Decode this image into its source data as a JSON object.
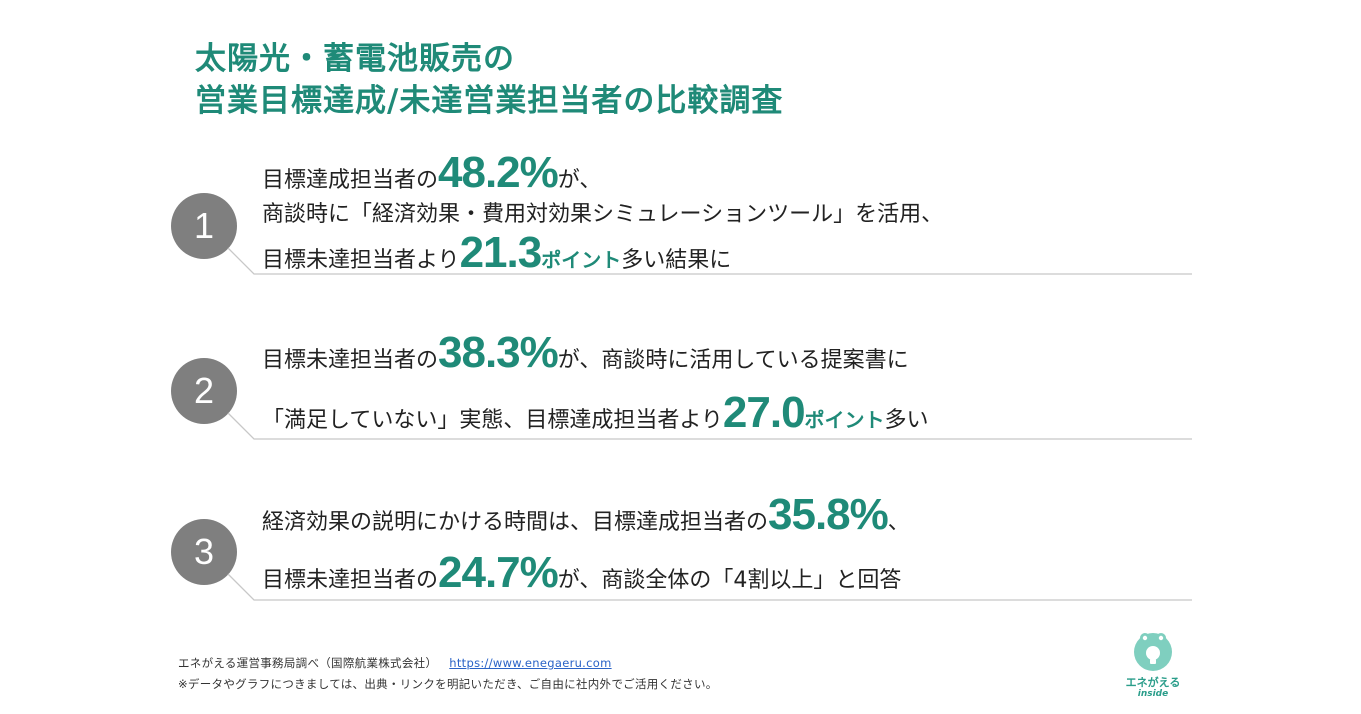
{
  "title": {
    "line1": "太陽光・蓄電池販売の",
    "line2": "営業目標達成/未達営業担当者の比較調査"
  },
  "items": [
    {
      "number": "1",
      "l1_pre": "目標達成担当者の",
      "l1_big": "48.2%",
      "l1_post": "が、",
      "l2": "商談時に「経済効果・費用対効果シミュレーションツール」を活用、",
      "l3_pre": "目標未達担当者より",
      "l3_big": "21.3",
      "l3_pt": "ポイント",
      "l3_post": "多い結果に"
    },
    {
      "number": "2",
      "l1_pre": "目標未達担当者の",
      "l1_big": "38.3%",
      "l1_post": "が、商談時に活用している提案書に",
      "l2_pre": "「満足していない」実態、目標達成担当者より",
      "l2_big": "27.0",
      "l2_pt": "ポイント",
      "l2_post": "多い"
    },
    {
      "number": "3",
      "l1_pre": "経済効果の説明にかける時間は、目標達成担当者の",
      "l1_big": "35.8%",
      "l1_post": "、",
      "l2_pre": "目標未達担当者の",
      "l2_big": "24.7%",
      "l2_post": "が、商談全体の「4割以上」と回答"
    }
  ],
  "footer": {
    "source": "エネがえる運営事務局調べ（国際航業株式会社）",
    "url": "https://www.enegaeru.com",
    "note": "※データやグラフにつきましては、出典・リンクを明記いただき、ご自由に社内外でご活用ください。"
  },
  "logo": {
    "text": "エネがえる",
    "sub": "inside"
  },
  "colors": {
    "accent": "#1f8a78",
    "circle": "#7f7f7f",
    "link": "#2a63c7"
  }
}
